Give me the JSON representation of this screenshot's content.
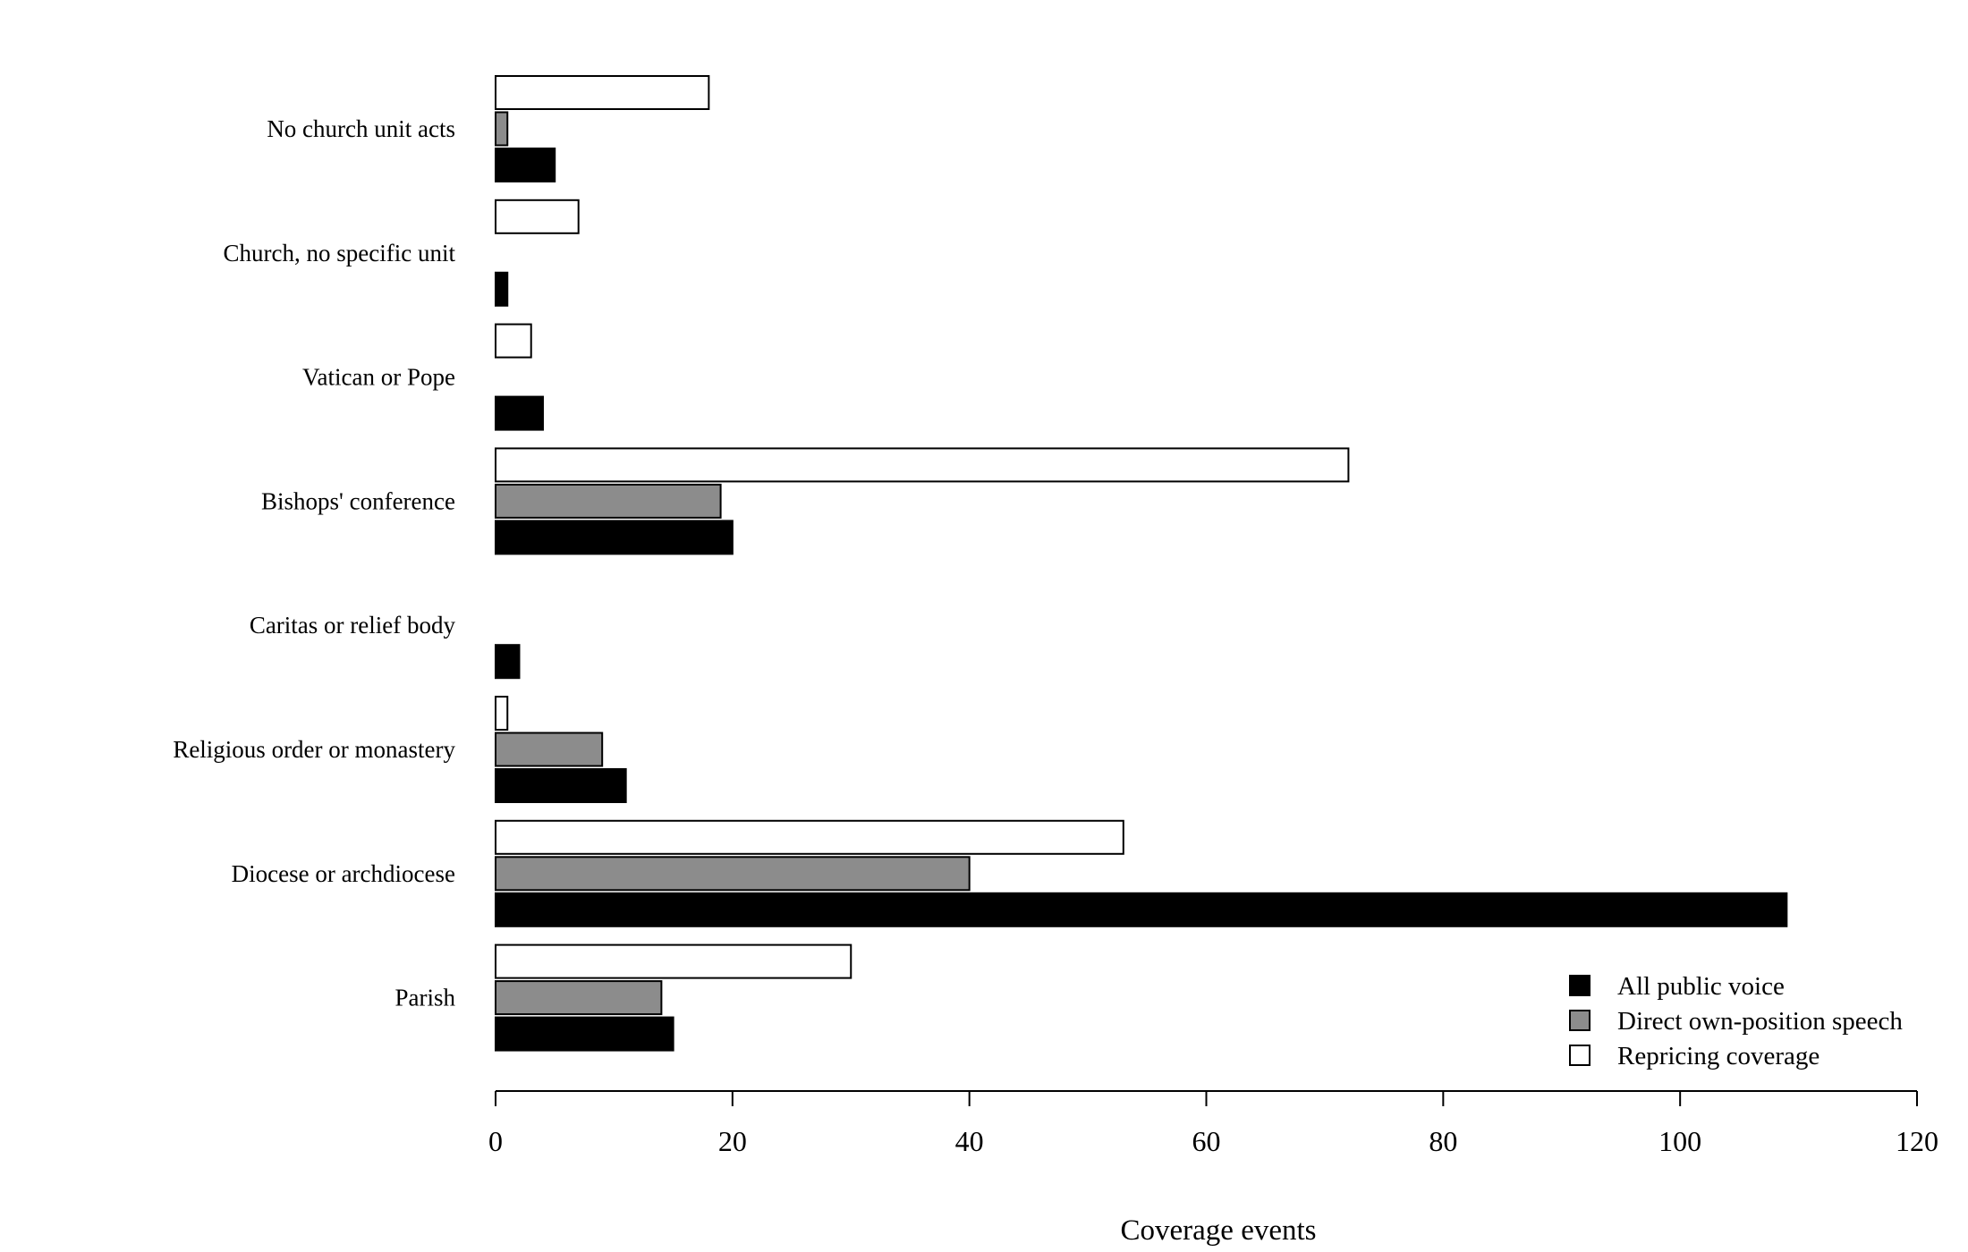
{
  "chart_data": {
    "type": "bar",
    "orientation": "horizontal",
    "xlabel": "Coverage events",
    "xlim": [
      0,
      120
    ],
    "xticks": [
      0,
      20,
      40,
      60,
      80,
      100,
      120
    ],
    "grid": false,
    "legend_position": "bottom-right",
    "categories": [
      "No church unit acts",
      "Church, no specific unit",
      "Vatican or Pope",
      "Bishops' conference",
      "Caritas or relief body",
      "Religious order or monastery",
      "Diocese or archdiocese",
      "Parish"
    ],
    "series": [
      {
        "name": "Repricing coverage",
        "color": "#ffffff",
        "values": [
          18,
          7,
          3,
          72,
          0,
          1,
          53,
          30
        ]
      },
      {
        "name": "Direct own-position speech",
        "color": "#8c8c8c",
        "values": [
          1,
          0,
          0,
          19,
          0,
          9,
          40,
          14
        ]
      },
      {
        "name": "All public voice",
        "color": "#000000",
        "values": [
          5,
          1,
          4,
          20,
          2,
          11,
          109,
          15
        ]
      }
    ],
    "legend_order": [
      "All public voice",
      "Direct own-position speech",
      "Repricing coverage"
    ]
  }
}
